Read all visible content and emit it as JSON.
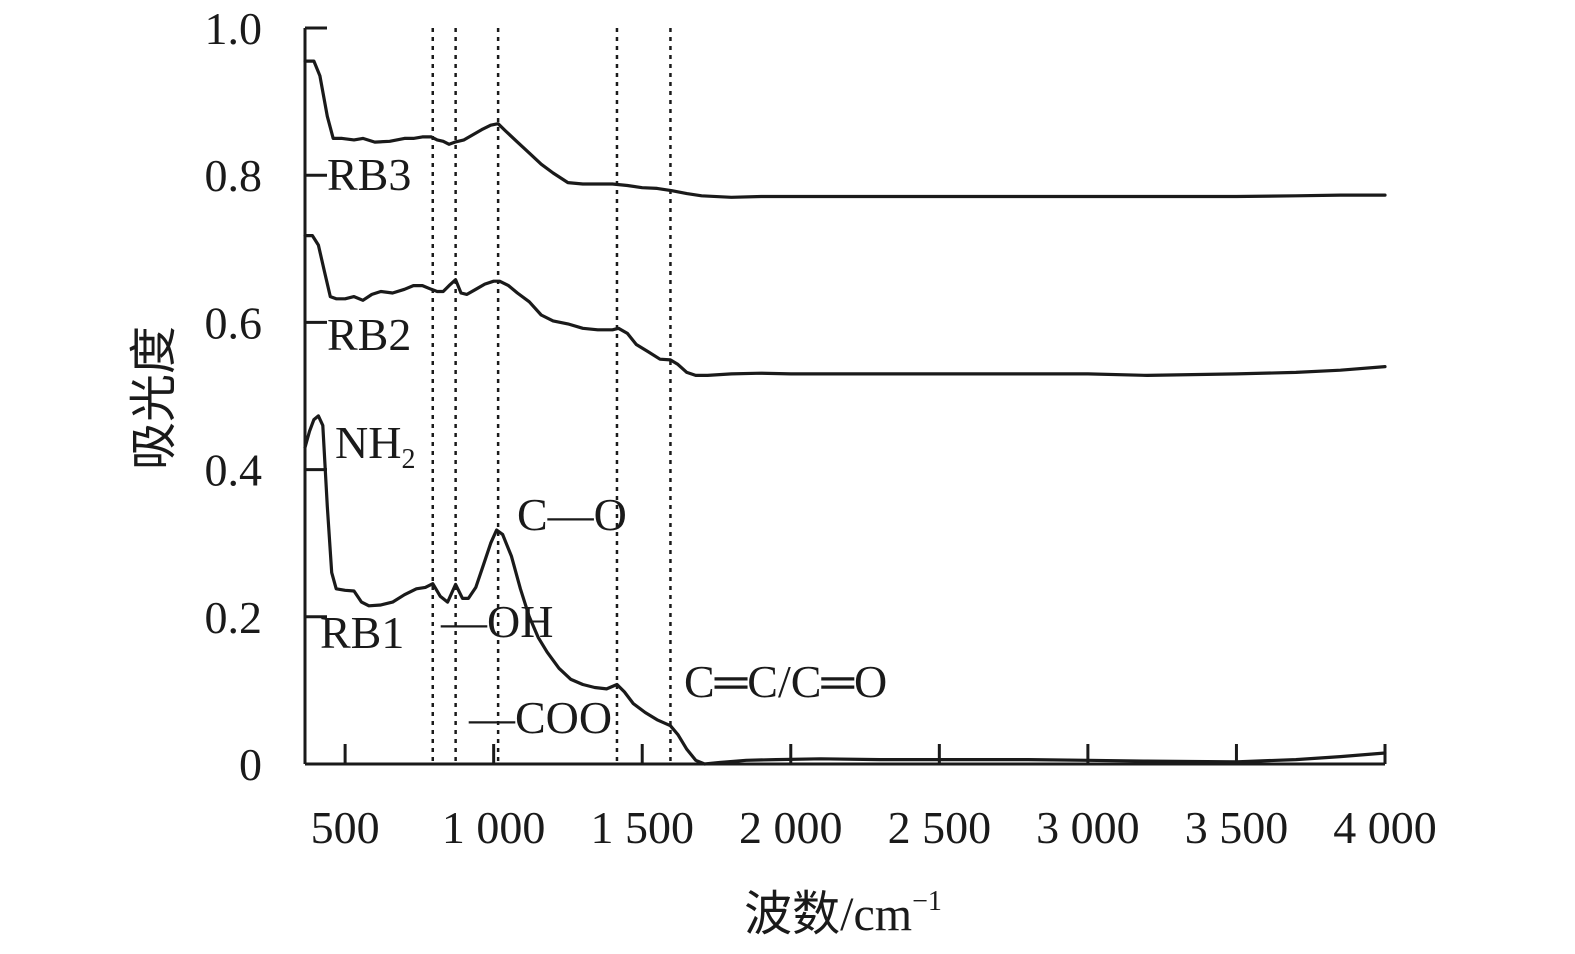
{
  "chart_data": {
    "type": "line",
    "title": "",
    "xlabel": "波数/cm",
    "xlabel_sup": "−1",
    "ylabel": "吸光度",
    "xlim": [
      365,
      4000
    ],
    "ylim": [
      0,
      1.0
    ],
    "x_ticks": [
      500,
      1000,
      1500,
      2000,
      2500,
      3000,
      3500,
      4000
    ],
    "x_tick_labels": [
      "500",
      "1 000",
      "1 500",
      "2 000",
      "2 500",
      "3 000",
      "3 500",
      "4 000"
    ],
    "y_ticks": [
      0,
      0.2,
      0.4,
      0.6,
      0.8,
      1.0
    ],
    "y_tick_labels": [
      "0",
      "0.2",
      "0.4",
      "0.6",
      "0.8",
      "1.0"
    ],
    "grid": false,
    "reference_lines_x": [
      795,
      872,
      1015,
      1415,
      1595
    ],
    "series": [
      {
        "name": "RB3",
        "points": [
          [
            365,
            0.955
          ],
          [
            395,
            0.955
          ],
          [
            415,
            0.935
          ],
          [
            440,
            0.88
          ],
          [
            460,
            0.85
          ],
          [
            490,
            0.85
          ],
          [
            530,
            0.848
          ],
          [
            560,
            0.85
          ],
          [
            600,
            0.845
          ],
          [
            650,
            0.846
          ],
          [
            700,
            0.85
          ],
          [
            730,
            0.85
          ],
          [
            760,
            0.852
          ],
          [
            790,
            0.852
          ],
          [
            810,
            0.848
          ],
          [
            830,
            0.846
          ],
          [
            850,
            0.842
          ],
          [
            870,
            0.845
          ],
          [
            900,
            0.848
          ],
          [
            930,
            0.855
          ],
          [
            960,
            0.862
          ],
          [
            990,
            0.868
          ],
          [
            1015,
            0.87
          ],
          [
            1040,
            0.86
          ],
          [
            1080,
            0.845
          ],
          [
            1120,
            0.83
          ],
          [
            1160,
            0.815
          ],
          [
            1200,
            0.803
          ],
          [
            1250,
            0.79
          ],
          [
            1300,
            0.788
          ],
          [
            1350,
            0.788
          ],
          [
            1400,
            0.788
          ],
          [
            1450,
            0.786
          ],
          [
            1500,
            0.783
          ],
          [
            1550,
            0.782
          ],
          [
            1600,
            0.779
          ],
          [
            1650,
            0.775
          ],
          [
            1700,
            0.772
          ],
          [
            1800,
            0.77
          ],
          [
            1900,
            0.771
          ],
          [
            2000,
            0.771
          ],
          [
            2200,
            0.771
          ],
          [
            2500,
            0.771
          ],
          [
            2800,
            0.771
          ],
          [
            3000,
            0.771
          ],
          [
            3300,
            0.771
          ],
          [
            3500,
            0.771
          ],
          [
            3700,
            0.772
          ],
          [
            3850,
            0.773
          ],
          [
            4000,
            0.773
          ]
        ]
      },
      {
        "name": "RB2",
        "points": [
          [
            365,
            0.718
          ],
          [
            390,
            0.718
          ],
          [
            410,
            0.705
          ],
          [
            430,
            0.67
          ],
          [
            450,
            0.635
          ],
          [
            470,
            0.632
          ],
          [
            500,
            0.632
          ],
          [
            530,
            0.635
          ],
          [
            560,
            0.63
          ],
          [
            590,
            0.638
          ],
          [
            620,
            0.642
          ],
          [
            660,
            0.64
          ],
          [
            700,
            0.645
          ],
          [
            730,
            0.65
          ],
          [
            760,
            0.65
          ],
          [
            790,
            0.645
          ],
          [
            810,
            0.642
          ],
          [
            830,
            0.642
          ],
          [
            850,
            0.65
          ],
          [
            872,
            0.658
          ],
          [
            890,
            0.64
          ],
          [
            910,
            0.638
          ],
          [
            940,
            0.645
          ],
          [
            970,
            0.652
          ],
          [
            1000,
            0.656
          ],
          [
            1020,
            0.656
          ],
          [
            1050,
            0.65
          ],
          [
            1080,
            0.64
          ],
          [
            1120,
            0.628
          ],
          [
            1160,
            0.61
          ],
          [
            1200,
            0.602
          ],
          [
            1250,
            0.598
          ],
          [
            1300,
            0.592
          ],
          [
            1350,
            0.59
          ],
          [
            1400,
            0.59
          ],
          [
            1420,
            0.592
          ],
          [
            1450,
            0.585
          ],
          [
            1480,
            0.57
          ],
          [
            1520,
            0.56
          ],
          [
            1560,
            0.55
          ],
          [
            1595,
            0.549
          ],
          [
            1620,
            0.543
          ],
          [
            1650,
            0.532
          ],
          [
            1680,
            0.528
          ],
          [
            1720,
            0.528
          ],
          [
            1800,
            0.53
          ],
          [
            1900,
            0.531
          ],
          [
            2000,
            0.53
          ],
          [
            2200,
            0.53
          ],
          [
            2500,
            0.53
          ],
          [
            2800,
            0.53
          ],
          [
            3000,
            0.53
          ],
          [
            3200,
            0.528
          ],
          [
            3500,
            0.53
          ],
          [
            3700,
            0.532
          ],
          [
            3850,
            0.535
          ],
          [
            4000,
            0.54
          ]
        ]
      },
      {
        "name": "RB1",
        "points": [
          [
            365,
            0.43
          ],
          [
            380,
            0.452
          ],
          [
            395,
            0.468
          ],
          [
            410,
            0.473
          ],
          [
            425,
            0.46
          ],
          [
            440,
            0.35
          ],
          [
            455,
            0.26
          ],
          [
            470,
            0.238
          ],
          [
            500,
            0.236
          ],
          [
            530,
            0.235
          ],
          [
            555,
            0.22
          ],
          [
            580,
            0.215
          ],
          [
            620,
            0.216
          ],
          [
            660,
            0.22
          ],
          [
            700,
            0.23
          ],
          [
            740,
            0.238
          ],
          [
            770,
            0.24
          ],
          [
            795,
            0.245
          ],
          [
            820,
            0.228
          ],
          [
            845,
            0.22
          ],
          [
            872,
            0.244
          ],
          [
            895,
            0.225
          ],
          [
            915,
            0.225
          ],
          [
            940,
            0.24
          ],
          [
            965,
            0.27
          ],
          [
            990,
            0.3
          ],
          [
            1010,
            0.318
          ],
          [
            1030,
            0.312
          ],
          [
            1060,
            0.282
          ],
          [
            1090,
            0.238
          ],
          [
            1120,
            0.2
          ],
          [
            1150,
            0.172
          ],
          [
            1180,
            0.152
          ],
          [
            1220,
            0.13
          ],
          [
            1260,
            0.115
          ],
          [
            1300,
            0.108
          ],
          [
            1340,
            0.104
          ],
          [
            1380,
            0.102
          ],
          [
            1415,
            0.108
          ],
          [
            1440,
            0.098
          ],
          [
            1470,
            0.082
          ],
          [
            1510,
            0.07
          ],
          [
            1550,
            0.06
          ],
          [
            1595,
            0.052
          ],
          [
            1620,
            0.04
          ],
          [
            1650,
            0.02
          ],
          [
            1680,
            0.005
          ],
          [
            1710,
            0.0
          ],
          [
            1760,
            0.002
          ],
          [
            1850,
            0.005
          ],
          [
            1950,
            0.006
          ],
          [
            2100,
            0.007
          ],
          [
            2300,
            0.006
          ],
          [
            2500,
            0.006
          ],
          [
            2800,
            0.006
          ],
          [
            3000,
            0.005
          ],
          [
            3200,
            0.004
          ],
          [
            3500,
            0.003
          ],
          [
            3700,
            0.006
          ],
          [
            3850,
            0.01
          ],
          [
            4000,
            0.015
          ]
        ]
      }
    ],
    "annotations": [
      {
        "text": "NH",
        "sub": "2"
      },
      {
        "text": "C—O"
      },
      {
        "text": "—OH"
      },
      {
        "text": "—COO"
      },
      {
        "text": "C═C/C═O"
      }
    ]
  }
}
